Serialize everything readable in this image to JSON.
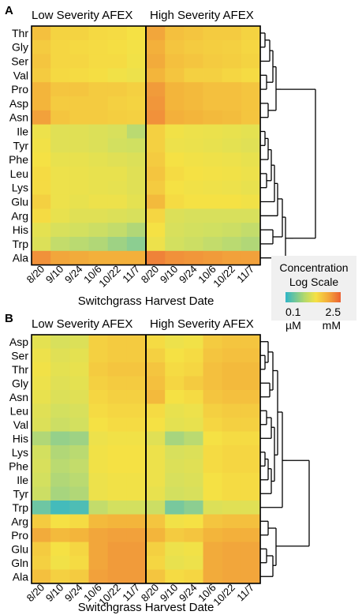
{
  "colors": {
    "scale": [
      "#2fb5c7",
      "#86cc95",
      "#d2e060",
      "#f5e144",
      "#f3b33b",
      "#f0893a",
      "#ec5f31"
    ],
    "legend_bg": "#f0f0f0"
  },
  "legend": {
    "title_line1": "Concentration",
    "title_line2": "Log Scale",
    "min_value": "0.1",
    "min_unit": "µM",
    "max_value": "2.5",
    "max_unit": "mM"
  },
  "chart_data": [
    {
      "type": "heatmap",
      "panel": "A",
      "group_titles": [
        "Low Severity AFEX",
        "High Severity AFEX"
      ],
      "columns": [
        "8/20",
        "9/10",
        "9/24",
        "10/6",
        "10/22",
        "11/7"
      ],
      "xlabel": "Switchgrass Harvest Date",
      "rows": [
        "Thr",
        "Gly",
        "Ser",
        "Val",
        "Pro",
        "Asp",
        "Asn",
        "Ile",
        "Tyr",
        "Phe",
        "Leu",
        "Lys",
        "Glu",
        "Arg",
        "His",
        "Trp",
        "Ala"
      ],
      "value_scale": "0 = low (0.1 µM), 1 = high (2.5 mM), log scale",
      "values": [
        [
          0.62,
          0.55,
          0.55,
          0.53,
          0.52,
          0.5,
          0.72,
          0.62,
          0.6,
          0.58,
          0.58,
          0.55
        ],
        [
          0.58,
          0.54,
          0.53,
          0.52,
          0.51,
          0.49,
          0.68,
          0.6,
          0.58,
          0.57,
          0.56,
          0.54
        ],
        [
          0.6,
          0.54,
          0.54,
          0.52,
          0.52,
          0.48,
          0.7,
          0.62,
          0.6,
          0.58,
          0.57,
          0.55
        ],
        [
          0.58,
          0.53,
          0.52,
          0.51,
          0.48,
          0.46,
          0.66,
          0.6,
          0.56,
          0.56,
          0.54,
          0.52
        ],
        [
          0.66,
          0.6,
          0.6,
          0.58,
          0.58,
          0.56,
          0.76,
          0.66,
          0.64,
          0.62,
          0.62,
          0.6
        ],
        [
          0.66,
          0.58,
          0.58,
          0.58,
          0.56,
          0.55,
          0.78,
          0.66,
          0.64,
          0.62,
          0.62,
          0.6
        ],
        [
          0.74,
          0.6,
          0.58,
          0.58,
          0.57,
          0.56,
          0.8,
          0.68,
          0.66,
          0.64,
          0.63,
          0.6
        ],
        [
          0.46,
          0.4,
          0.4,
          0.38,
          0.36,
          0.28,
          0.56,
          0.48,
          0.46,
          0.45,
          0.44,
          0.42
        ],
        [
          0.48,
          0.4,
          0.4,
          0.38,
          0.34,
          0.33,
          0.56,
          0.46,
          0.45,
          0.44,
          0.42,
          0.4
        ],
        [
          0.5,
          0.44,
          0.44,
          0.42,
          0.4,
          0.38,
          0.58,
          0.5,
          0.48,
          0.47,
          0.46,
          0.44
        ],
        [
          0.52,
          0.46,
          0.45,
          0.44,
          0.44,
          0.4,
          0.6,
          0.52,
          0.5,
          0.49,
          0.48,
          0.46
        ],
        [
          0.52,
          0.46,
          0.45,
          0.44,
          0.43,
          0.4,
          0.58,
          0.5,
          0.48,
          0.47,
          0.46,
          0.44
        ],
        [
          0.56,
          0.46,
          0.44,
          0.46,
          0.46,
          0.42,
          0.64,
          0.52,
          0.5,
          0.5,
          0.5,
          0.48
        ],
        [
          0.52,
          0.44,
          0.4,
          0.4,
          0.38,
          0.36,
          0.54,
          0.38,
          0.36,
          0.36,
          0.36,
          0.36
        ],
        [
          0.42,
          0.36,
          0.34,
          0.32,
          0.3,
          0.26,
          0.5,
          0.36,
          0.34,
          0.33,
          0.32,
          0.3
        ],
        [
          0.38,
          0.3,
          0.28,
          0.26,
          0.22,
          0.18,
          0.46,
          0.34,
          0.32,
          0.3,
          0.28,
          0.26
        ],
        [
          0.8,
          0.72,
          0.7,
          0.68,
          0.68,
          0.68,
          0.86,
          0.8,
          0.78,
          0.76,
          0.74,
          0.74
        ]
      ]
    },
    {
      "type": "heatmap",
      "panel": "B",
      "group_titles": [
        "Low Severity AFEX",
        "High Severity AFEX"
      ],
      "columns": [
        "8/20",
        "9/10",
        "9/24",
        "10/6",
        "10/22",
        "11/7"
      ],
      "xlabel": "Switchgrass Harvest Date",
      "rows": [
        "Asp",
        "Ser",
        "Thr",
        "Gly",
        "Asn",
        "Leu",
        "Val",
        "His",
        "Lys",
        "Phe",
        "Ile",
        "Tyr",
        "Trp",
        "Arg",
        "Pro",
        "Glu",
        "Gln",
        "Ala"
      ],
      "value_scale": "0 = low (0.1 µM), 1 = high (2.5 mM), log scale",
      "values": [
        [
          0.42,
          0.36,
          0.38,
          0.56,
          0.58,
          0.58,
          0.52,
          0.46,
          0.48,
          0.58,
          0.6,
          0.6
        ],
        [
          0.46,
          0.4,
          0.42,
          0.56,
          0.58,
          0.58,
          0.56,
          0.5,
          0.52,
          0.6,
          0.62,
          0.62
        ],
        [
          0.48,
          0.42,
          0.44,
          0.58,
          0.6,
          0.6,
          0.6,
          0.52,
          0.54,
          0.62,
          0.64,
          0.64
        ],
        [
          0.46,
          0.4,
          0.42,
          0.56,
          0.58,
          0.58,
          0.62,
          0.54,
          0.58,
          0.62,
          0.64,
          0.64
        ],
        [
          0.44,
          0.38,
          0.4,
          0.54,
          0.56,
          0.56,
          0.64,
          0.5,
          0.52,
          0.6,
          0.62,
          0.62
        ],
        [
          0.4,
          0.34,
          0.36,
          0.52,
          0.54,
          0.54,
          0.52,
          0.44,
          0.46,
          0.56,
          0.58,
          0.58
        ],
        [
          0.38,
          0.32,
          0.34,
          0.5,
          0.52,
          0.52,
          0.5,
          0.42,
          0.44,
          0.54,
          0.56,
          0.56
        ],
        [
          0.26,
          0.2,
          0.22,
          0.46,
          0.48,
          0.48,
          0.4,
          0.24,
          0.28,
          0.5,
          0.52,
          0.52
        ],
        [
          0.34,
          0.26,
          0.28,
          0.48,
          0.5,
          0.5,
          0.46,
          0.36,
          0.38,
          0.52,
          0.54,
          0.54
        ],
        [
          0.36,
          0.28,
          0.3,
          0.48,
          0.5,
          0.5,
          0.46,
          0.38,
          0.4,
          0.52,
          0.54,
          0.54
        ],
        [
          0.34,
          0.26,
          0.28,
          0.46,
          0.48,
          0.48,
          0.46,
          0.36,
          0.38,
          0.5,
          0.52,
          0.52
        ],
        [
          0.32,
          0.24,
          0.26,
          0.46,
          0.48,
          0.48,
          0.44,
          0.34,
          0.36,
          0.5,
          0.52,
          0.52
        ],
        [
          0.12,
          0.04,
          0.06,
          0.3,
          0.34,
          0.34,
          0.32,
          0.14,
          0.18,
          0.38,
          0.4,
          0.4
        ],
        [
          0.58,
          0.5,
          0.52,
          0.64,
          0.66,
          0.66,
          0.6,
          0.48,
          0.5,
          0.6,
          0.62,
          0.62
        ],
        [
          0.7,
          0.64,
          0.66,
          0.72,
          0.74,
          0.74,
          0.66,
          0.58,
          0.6,
          0.66,
          0.68,
          0.68
        ],
        [
          0.58,
          0.5,
          0.54,
          0.72,
          0.76,
          0.76,
          0.56,
          0.46,
          0.48,
          0.7,
          0.72,
          0.72
        ],
        [
          0.56,
          0.48,
          0.52,
          0.72,
          0.76,
          0.76,
          0.54,
          0.44,
          0.46,
          0.7,
          0.72,
          0.72
        ],
        [
          0.62,
          0.56,
          0.58,
          0.74,
          0.76,
          0.76,
          0.6,
          0.52,
          0.54,
          0.7,
          0.72,
          0.72
        ]
      ]
    }
  ]
}
